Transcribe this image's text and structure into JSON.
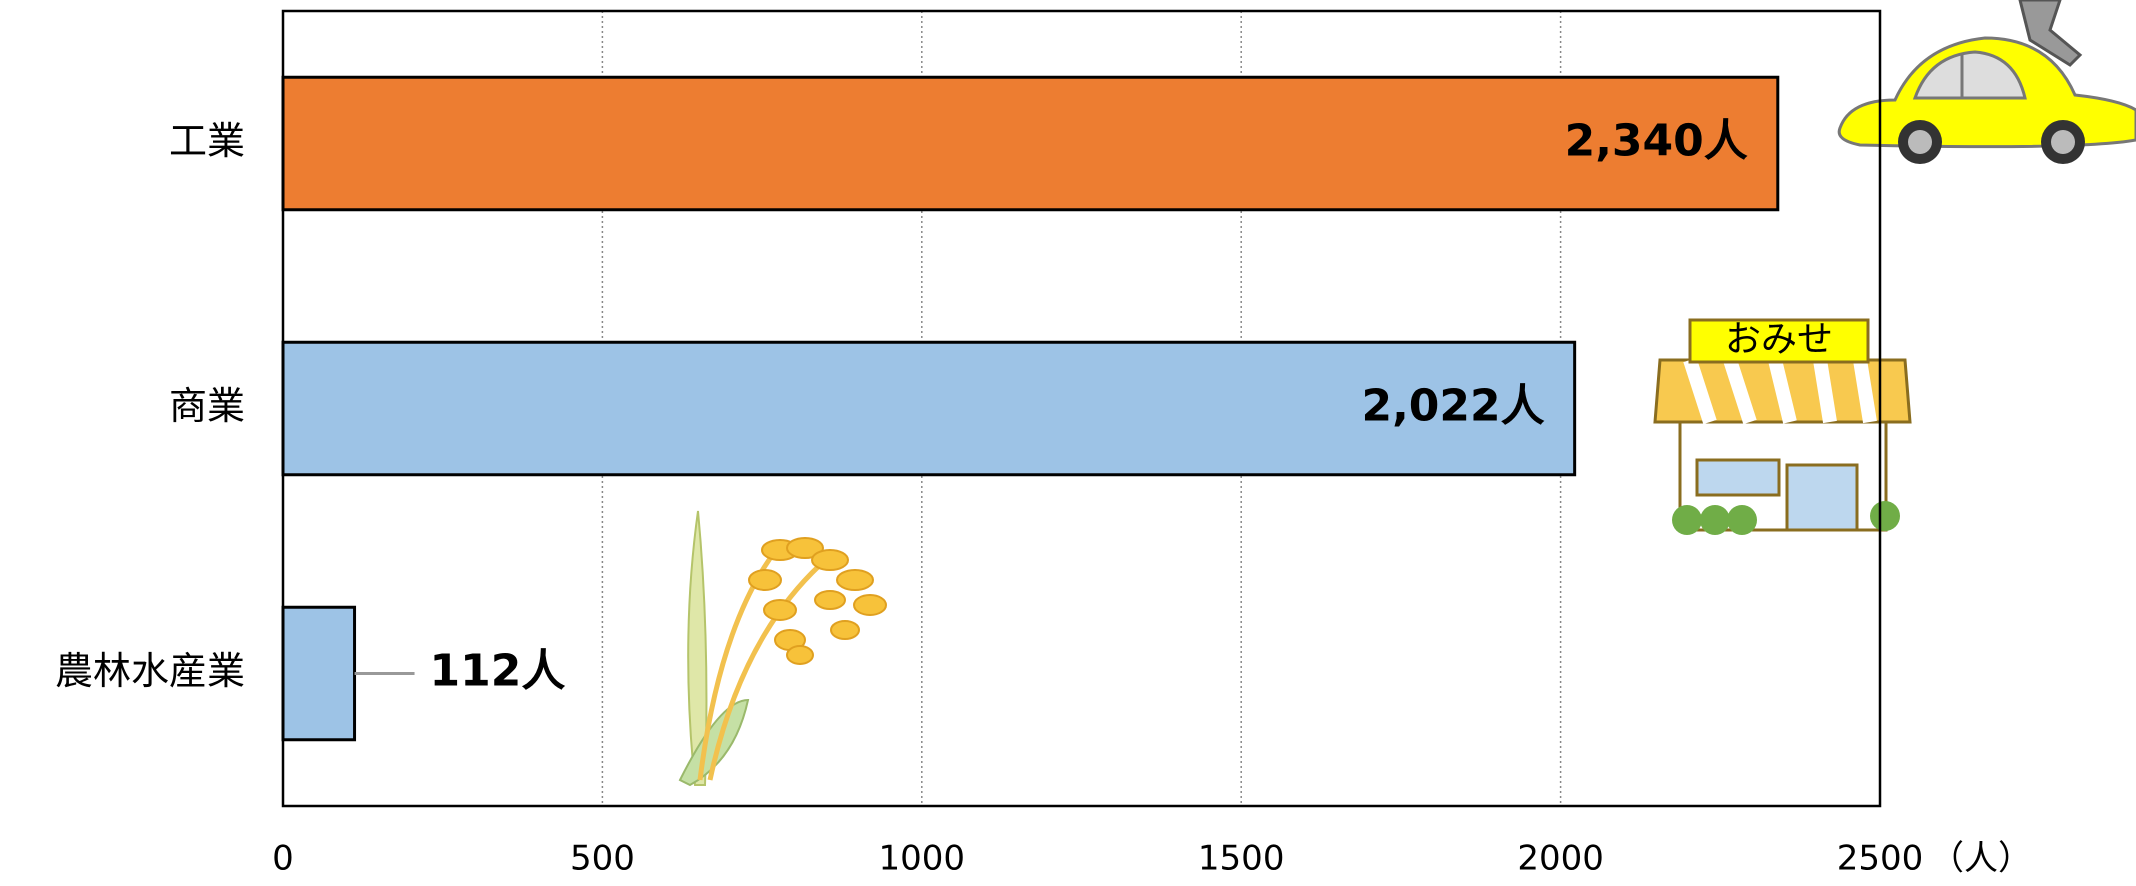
{
  "chart_data": {
    "type": "barh",
    "categories": [
      "工業",
      "商業",
      "農林水産業"
    ],
    "values": [
      2340,
      2022,
      112
    ],
    "value_labels": [
      "2,340人",
      "2,022人",
      "112人"
    ],
    "colors": [
      "#ed7d31",
      "#9dc3e6",
      "#9dc3e6"
    ],
    "xlim": [
      0,
      2500
    ],
    "xticks": [
      0,
      500,
      1000,
      1500,
      2000,
      2500
    ],
    "xlabel": "（人）",
    "grid": true,
    "illustration_text": "おみせ"
  }
}
